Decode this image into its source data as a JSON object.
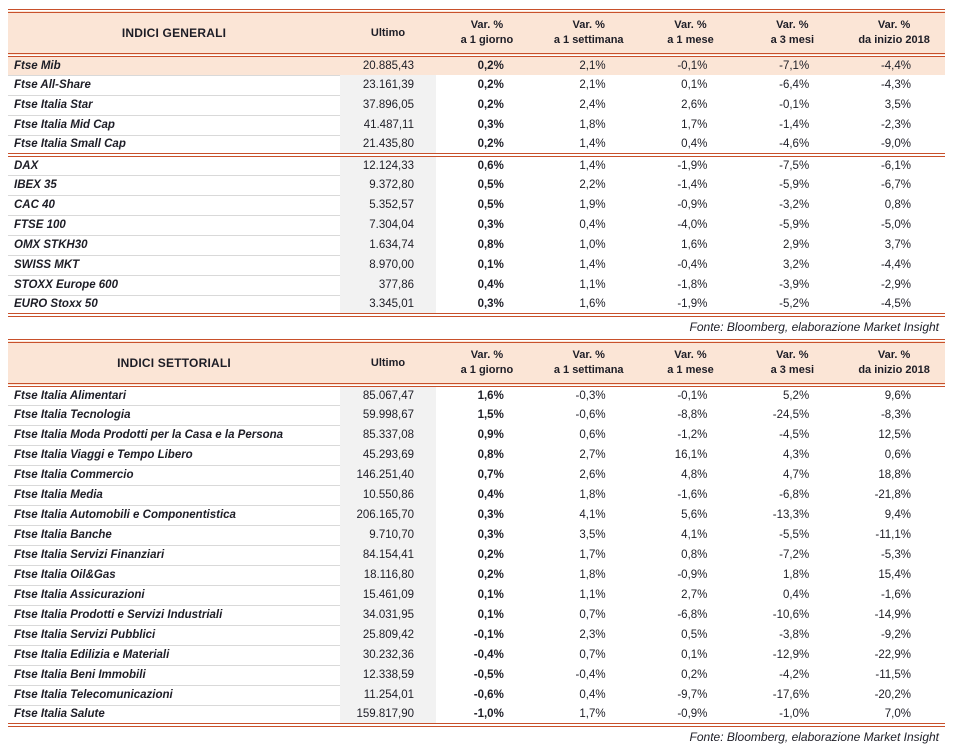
{
  "colors": {
    "accent": "#c8502b",
    "header_bg": "#fbe5d6",
    "highlight_bg": "#fbe5d6",
    "ultimo_bg": "#f2f2f2",
    "text": "#1d1d26"
  },
  "tables": [
    {
      "title": "INDICI GENERALI",
      "columns": [
        {
          "key": "ultimo",
          "label": "Ultimo",
          "sub": ""
        },
        {
          "key": "d1",
          "label": "Var. %",
          "sub": "a 1 giorno"
        },
        {
          "key": "w1",
          "label": "Var. %",
          "sub": "a 1 settimana"
        },
        {
          "key": "m1",
          "label": "Var. %",
          "sub": "a 1 mese"
        },
        {
          "key": "m3",
          "label": "Var. %",
          "sub": "a 3 mesi"
        },
        {
          "key": "ytd",
          "label": "Var. %",
          "sub": "da inizio 2018"
        }
      ],
      "rows": [
        {
          "name": "Ftse Mib",
          "ultimo": "20.885,43",
          "d1": "0,2%",
          "w1": "2,1%",
          "m1": "-0,1%",
          "m3": "-7,1%",
          "ytd": "-4,4%",
          "highlight": true
        },
        {
          "name": "Ftse All-Share",
          "ultimo": "23.161,39",
          "d1": "0,2%",
          "w1": "2,1%",
          "m1": "0,1%",
          "m3": "-6,4%",
          "ytd": "-4,3%"
        },
        {
          "name": "Ftse Italia Star",
          "ultimo": "37.896,05",
          "d1": "0,2%",
          "w1": "2,4%",
          "m1": "2,6%",
          "m3": "-0,1%",
          "ytd": "3,5%"
        },
        {
          "name": "Ftse Italia Mid Cap",
          "ultimo": "41.487,11",
          "d1": "0,3%",
          "w1": "1,8%",
          "m1": "1,7%",
          "m3": "-1,4%",
          "ytd": "-2,3%"
        },
        {
          "name": "Ftse Italia Small Cap",
          "ultimo": "21.435,80",
          "d1": "0,2%",
          "w1": "1,4%",
          "m1": "0,4%",
          "m3": "-4,6%",
          "ytd": "-9,0%",
          "separator_after": true
        },
        {
          "name": "DAX",
          "ultimo": "12.124,33",
          "d1": "0,6%",
          "w1": "1,4%",
          "m1": "-1,9%",
          "m3": "-7,5%",
          "ytd": "-6,1%"
        },
        {
          "name": "IBEX 35",
          "ultimo": "9.372,80",
          "d1": "0,5%",
          "w1": "2,2%",
          "m1": "-1,4%",
          "m3": "-5,9%",
          "ytd": "-6,7%"
        },
        {
          "name": "CAC 40",
          "ultimo": "5.352,57",
          "d1": "0,5%",
          "w1": "1,9%",
          "m1": "-0,9%",
          "m3": "-3,2%",
          "ytd": "0,8%"
        },
        {
          "name": "FTSE 100",
          "ultimo": "7.304,04",
          "d1": "0,3%",
          "w1": "0,4%",
          "m1": "-4,0%",
          "m3": "-5,9%",
          "ytd": "-5,0%"
        },
        {
          "name": "OMX STKH30",
          "ultimo": "1.634,74",
          "d1": "0,8%",
          "w1": "1,0%",
          "m1": "1,6%",
          "m3": "2,9%",
          "ytd": "3,7%"
        },
        {
          "name": "SWISS MKT",
          "ultimo": "8.970,00",
          "d1": "0,1%",
          "w1": "1,4%",
          "m1": "-0,4%",
          "m3": "3,2%",
          "ytd": "-4,4%"
        },
        {
          "name": "STOXX Europe 600",
          "ultimo": "377,86",
          "d1": "0,4%",
          "w1": "1,1%",
          "m1": "-1,8%",
          "m3": "-3,9%",
          "ytd": "-2,9%"
        },
        {
          "name": "EURO Stoxx 50",
          "ultimo": "3.345,01",
          "d1": "0,3%",
          "w1": "1,6%",
          "m1": "-1,9%",
          "m3": "-5,2%",
          "ytd": "-4,5%"
        }
      ],
      "footer": "Fonte: Bloomberg, elaborazione Market Insight"
    },
    {
      "title": "INDICI SETTORIALI",
      "columns": [
        {
          "key": "ultimo",
          "label": "Ultimo",
          "sub": ""
        },
        {
          "key": "d1",
          "label": "Var. %",
          "sub": "a 1 giorno"
        },
        {
          "key": "w1",
          "label": "Var. %",
          "sub": "a 1 settimana"
        },
        {
          "key": "m1",
          "label": "Var. %",
          "sub": "a 1 mese"
        },
        {
          "key": "m3",
          "label": "Var. %",
          "sub": "a 3 mesi"
        },
        {
          "key": "ytd",
          "label": "Var. %",
          "sub": "da inizio 2018"
        }
      ],
      "rows": [
        {
          "name": "Ftse Italia Alimentari",
          "ultimo": "85.067,47",
          "d1": "1,6%",
          "w1": "-0,3%",
          "m1": "-0,1%",
          "m3": "5,2%",
          "ytd": "9,6%"
        },
        {
          "name": "Ftse Italia Tecnologia",
          "ultimo": "59.998,67",
          "d1": "1,5%",
          "w1": "-0,6%",
          "m1": "-8,8%",
          "m3": "-24,5%",
          "ytd": "-8,3%"
        },
        {
          "name": "Ftse Italia Moda Prodotti per la Casa e la Persona",
          "ultimo": "85.337,08",
          "d1": "0,9%",
          "w1": "0,6%",
          "m1": "-1,2%",
          "m3": "-4,5%",
          "ytd": "12,5%"
        },
        {
          "name": "Ftse Italia Viaggi e Tempo Libero",
          "ultimo": "45.293,69",
          "d1": "0,8%",
          "w1": "2,7%",
          "m1": "16,1%",
          "m3": "4,3%",
          "ytd": "0,6%"
        },
        {
          "name": "Ftse Italia Commercio",
          "ultimo": "146.251,40",
          "d1": "0,7%",
          "w1": "2,6%",
          "m1": "4,8%",
          "m3": "4,7%",
          "ytd": "18,8%"
        },
        {
          "name": "Ftse Italia Media",
          "ultimo": "10.550,86",
          "d1": "0,4%",
          "w1": "1,8%",
          "m1": "-1,6%",
          "m3": "-6,8%",
          "ytd": "-21,8%"
        },
        {
          "name": "Ftse Italia Automobili e Componentistica",
          "ultimo": "206.165,70",
          "d1": "0,3%",
          "w1": "4,1%",
          "m1": "5,6%",
          "m3": "-13,3%",
          "ytd": "9,4%"
        },
        {
          "name": "Ftse Italia Banche",
          "ultimo": "9.710,70",
          "d1": "0,3%",
          "w1": "3,5%",
          "m1": "4,1%",
          "m3": "-5,5%",
          "ytd": "-11,1%"
        },
        {
          "name": "Ftse Italia Servizi Finanziari",
          "ultimo": "84.154,41",
          "d1": "0,2%",
          "w1": "1,7%",
          "m1": "0,8%",
          "m3": "-7,2%",
          "ytd": "-5,3%"
        },
        {
          "name": "Ftse Italia Oil&Gas",
          "ultimo": "18.116,80",
          "d1": "0,2%",
          "w1": "1,8%",
          "m1": "-0,9%",
          "m3": "1,8%",
          "ytd": "15,4%"
        },
        {
          "name": "Ftse Italia Assicurazioni",
          "ultimo": "15.461,09",
          "d1": "0,1%",
          "w1": "1,1%",
          "m1": "2,7%",
          "m3": "0,4%",
          "ytd": "-1,6%"
        },
        {
          "name": "Ftse Italia Prodotti e Servizi Industriali",
          "ultimo": "34.031,95",
          "d1": "0,1%",
          "w1": "0,7%",
          "m1": "-6,8%",
          "m3": "-10,6%",
          "ytd": "-14,9%"
        },
        {
          "name": "Ftse Italia Servizi Pubblici",
          "ultimo": "25.809,42",
          "d1": "-0,1%",
          "w1": "2,3%",
          "m1": "0,5%",
          "m3": "-3,8%",
          "ytd": "-9,2%"
        },
        {
          "name": "Ftse Italia Edilizia e Materiali",
          "ultimo": "30.232,36",
          "d1": "-0,4%",
          "w1": "0,7%",
          "m1": "0,1%",
          "m3": "-12,9%",
          "ytd": "-22,9%"
        },
        {
          "name": "Ftse Italia Beni Immobili",
          "ultimo": "12.338,59",
          "d1": "-0,5%",
          "w1": "-0,4%",
          "m1": "0,2%",
          "m3": "-4,2%",
          "ytd": "-11,5%"
        },
        {
          "name": "Ftse Italia Telecomunicazioni",
          "ultimo": "11.254,01",
          "d1": "-0,6%",
          "w1": "0,4%",
          "m1": "-9,7%",
          "m3": "-17,6%",
          "ytd": "-20,2%"
        },
        {
          "name": "Ftse Italia Salute",
          "ultimo": "159.817,90",
          "d1": "-1,0%",
          "w1": "1,7%",
          "m1": "-0,9%",
          "m3": "-1,0%",
          "ytd": "7,0%"
        }
      ],
      "footer": "Fonte: Bloomberg, elaborazione Market Insight"
    }
  ]
}
